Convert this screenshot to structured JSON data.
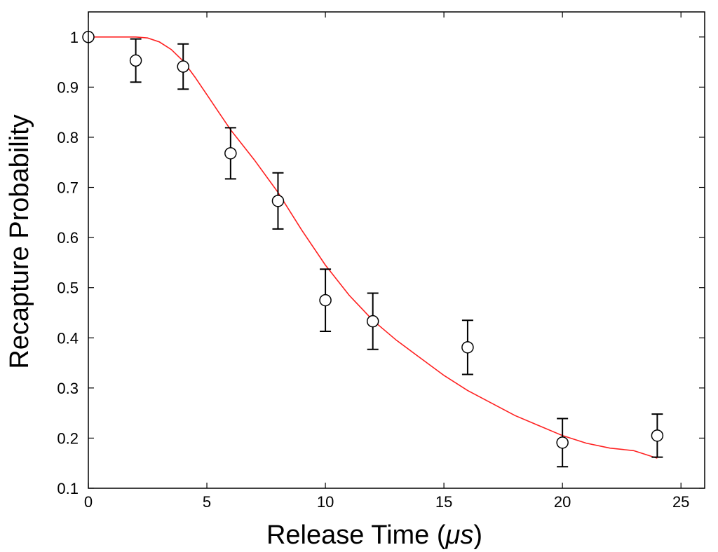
{
  "chart_data": {
    "type": "scatter",
    "title": "",
    "xlabel_text": "Release Time (",
    "xlabel_unit": "μs",
    "xlabel_close": ")",
    "ylabel": "Recapture Probability",
    "xlim": [
      0,
      26
    ],
    "ylim": [
      0.1,
      1.05
    ],
    "xticks": [
      0,
      5,
      10,
      15,
      20,
      25
    ],
    "xtick_labels": [
      "0",
      "5",
      "10",
      "15",
      "20",
      "25"
    ],
    "yticks": [
      0.1,
      0.2,
      0.3,
      0.4,
      0.5,
      0.6,
      0.7,
      0.8,
      0.9,
      1.0
    ],
    "ytick_labels": [
      "0.1",
      "0.2",
      "0.3",
      "0.4",
      "0.5",
      "0.6",
      "0.7",
      "0.8",
      "0.9",
      "1"
    ],
    "grid": false,
    "series": [
      {
        "kind": "markers-with-errorbars",
        "color": "#000000",
        "marker": "open-circle",
        "points": [
          {
            "x": 0,
            "y": 1.0,
            "err": null
          },
          {
            "x": 2,
            "y": 0.953,
            "err": 0.043
          },
          {
            "x": 4,
            "y": 0.941,
            "err": 0.045
          },
          {
            "x": 6,
            "y": 0.768,
            "err": 0.051
          },
          {
            "x": 8,
            "y": 0.673,
            "err": 0.056
          },
          {
            "x": 10,
            "y": 0.475,
            "err": 0.062
          },
          {
            "x": 12,
            "y": 0.433,
            "err": 0.056
          },
          {
            "x": 16,
            "y": 0.381,
            "err": 0.054
          },
          {
            "x": 20,
            "y": 0.191,
            "err": 0.048
          },
          {
            "x": 24,
            "y": 0.205,
            "err": 0.043
          }
        ]
      },
      {
        "kind": "line",
        "color": "#ff2020",
        "x": [
          0,
          1,
          2,
          2.5,
          3,
          3.5,
          4,
          4.5,
          5,
          5.5,
          6,
          6.5,
          7,
          8,
          9,
          10,
          11,
          12,
          13,
          14,
          15,
          16,
          17,
          18,
          19,
          20,
          21,
          22,
          23,
          24
        ],
        "y": [
          1.0,
          1.0,
          1.0,
          0.998,
          0.99,
          0.975,
          0.952,
          0.92,
          0.885,
          0.85,
          0.815,
          0.785,
          0.755,
          0.69,
          0.615,
          0.545,
          0.485,
          0.435,
          0.395,
          0.36,
          0.325,
          0.295,
          0.27,
          0.245,
          0.225,
          0.205,
          0.19,
          0.18,
          0.175,
          0.16
        ]
      }
    ]
  }
}
